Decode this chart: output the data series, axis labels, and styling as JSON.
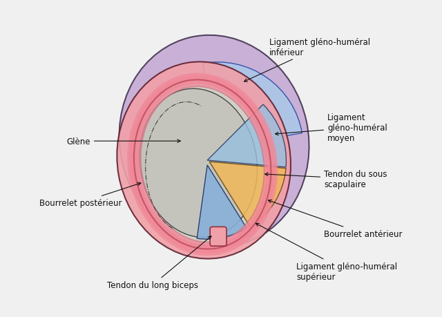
{
  "background_color": "#e8e8e8",
  "title": "",
  "labels": {
    "tendon_long_biceps": "Tendon du long biceps",
    "ligament_sup": "Ligament gléno-huméral\nsupérieur",
    "bourrelet_ant": "Bourrelet antérieur",
    "bourrelet_post": "Bourrelet postérieur",
    "glene": "Glène",
    "tendon_sous_scap": "Tendon du sous\nscapulaire",
    "ligament_moyen": "Ligament\ngléno-huméral\nmoyen",
    "ligament_inf": "Ligament gléno-huméral\ninférieur"
  },
  "colors": {
    "pink_capsule": "#F4A0A0",
    "pink_capsule_light": "#F8C0C0",
    "blue_ligament": "#A0C0E8",
    "blue_ligament_dark": "#7090C0",
    "orange_tendon": "#F0B860",
    "purple_inferior": "#C0A0D0",
    "gray_glene": "#C8C8C8",
    "white_bg": "#F0F0F0",
    "outline": "#202020"
  }
}
